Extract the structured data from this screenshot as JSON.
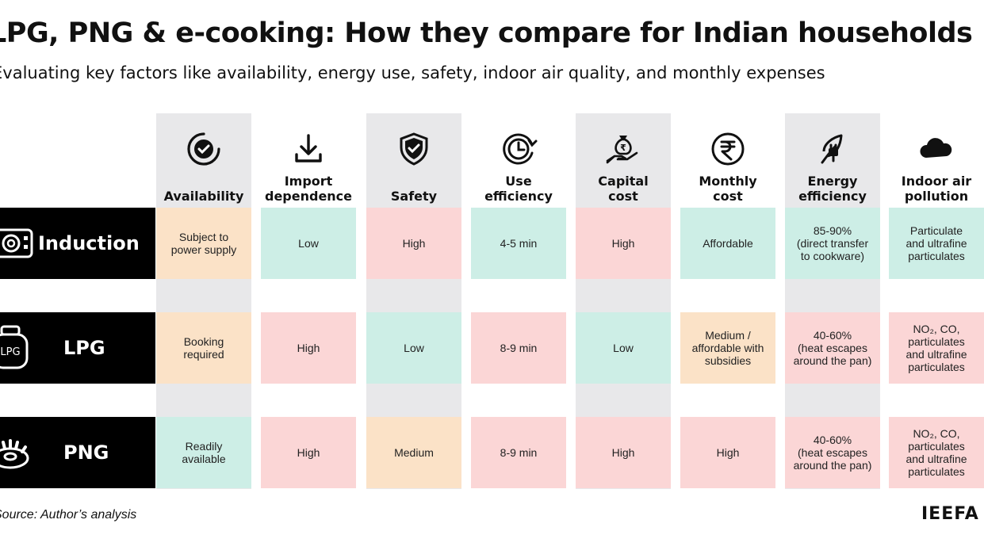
{
  "title": "LPG, PNG & e-cooking: How they compare for Indian households",
  "subtitle": "Evaluating key factors like availability, energy use, safety, indoor air quality, and monthly expenses",
  "columns": [
    {
      "label": "Availability",
      "icon": "check-circle-icon",
      "shaded": true
    },
    {
      "label": "Import\ndependence",
      "icon": "download-icon",
      "shaded": false
    },
    {
      "label": "Safety",
      "icon": "shield-check-icon",
      "shaded": true
    },
    {
      "label": "Use\nefficiency",
      "icon": "clock-cycle-icon",
      "shaded": false
    },
    {
      "label": "Capital\ncost",
      "icon": "money-bag-hand-icon",
      "shaded": true
    },
    {
      "label": "Monthly\ncost",
      "icon": "rupee-icon",
      "shaded": false
    },
    {
      "label": "Energy\nefficiency",
      "icon": "leaf-plug-icon",
      "shaded": true
    },
    {
      "label": "Indoor air\npollution",
      "icon": "cloud-icon",
      "shaded": false
    }
  ],
  "rows": [
    {
      "name": "Induction",
      "icon": "induction-stove-icon",
      "cells": [
        {
          "text": "Subject to\npower supply",
          "color": "peach"
        },
        {
          "text": "Low",
          "color": "teal"
        },
        {
          "text": "High",
          "color": "pink"
        },
        {
          "text": "4-5 min",
          "color": "teal"
        },
        {
          "text": "High",
          "color": "pink"
        },
        {
          "text": "Affordable",
          "color": "teal"
        },
        {
          "text": "85-90%\n(direct transfer\nto cookware)",
          "color": "teal"
        },
        {
          "text": "Particulate\nand ultrafine\nparticulates",
          "color": "teal"
        }
      ]
    },
    {
      "name": "LPG",
      "icon": "gas-cylinder-icon",
      "cells": [
        {
          "text": "Booking\nrequired",
          "color": "peach"
        },
        {
          "text": "High",
          "color": "pink"
        },
        {
          "text": "Low",
          "color": "teal"
        },
        {
          "text": "8-9 min",
          "color": "pink"
        },
        {
          "text": "Low",
          "color": "teal"
        },
        {
          "text": "Medium /\naffordable with\nsubsidies",
          "color": "peach"
        },
        {
          "text": "40-60%\n(heat escapes\naround the pan)",
          "color": "pink"
        },
        {
          "text": "NO₂, CO,\nparticulates\nand ultrafine\nparticulates",
          "color": "pink"
        }
      ]
    },
    {
      "name": "PNG",
      "icon": "gas-burner-icon",
      "cells": [
        {
          "text": "Readily\navailable",
          "color": "teal"
        },
        {
          "text": "High",
          "color": "pink"
        },
        {
          "text": "Medium",
          "color": "peach"
        },
        {
          "text": "8-9 min",
          "color": "pink"
        },
        {
          "text": "High",
          "color": "pink"
        },
        {
          "text": "High",
          "color": "pink"
        },
        {
          "text": "40-60%\n(heat escapes\naround the pan)",
          "color": "pink"
        },
        {
          "text": "NO₂, CO,\nparticulates\nand ultrafine\nparticulates",
          "color": "pink"
        }
      ]
    }
  ],
  "source": "Source: Author’s analysis",
  "brand": "IEEFA",
  "colors": {
    "teal": "#cdeee6",
    "pink": "#fbd6d6",
    "peach": "#fbe2c7",
    "column_shade": "#e8e8ea",
    "row_label_bg": "#000000"
  }
}
